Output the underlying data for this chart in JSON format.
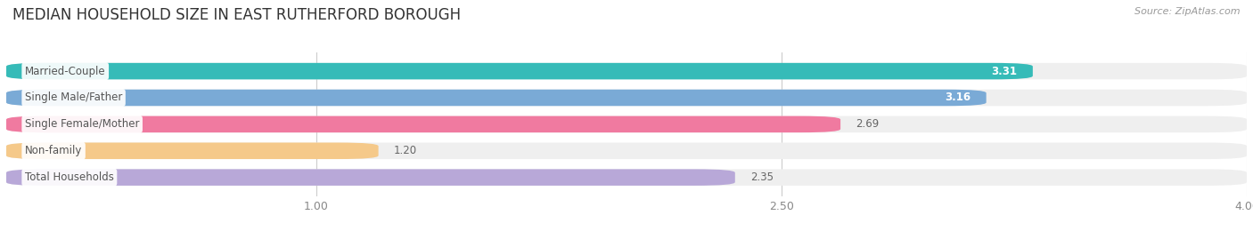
{
  "title": "MEDIAN HOUSEHOLD SIZE IN EAST RUTHERFORD BOROUGH",
  "source": "Source: ZipAtlas.com",
  "categories": [
    "Married-Couple",
    "Single Male/Father",
    "Single Female/Mother",
    "Non-family",
    "Total Households"
  ],
  "values": [
    3.31,
    3.16,
    2.69,
    1.2,
    2.35
  ],
  "bar_colors": [
    "#36bbb8",
    "#7aaad6",
    "#f07aA0",
    "#f5c98a",
    "#b8a8d8"
  ],
  "label_colors": [
    "#555555",
    "#555555",
    "#555555",
    "#555555",
    "#555555"
  ],
  "value_label_colors": [
    "white",
    "white",
    "#666666",
    "#666666",
    "#666666"
  ],
  "x_ticks": [
    1.0,
    2.5,
    4.0
  ],
  "x_min": 0.0,
  "x_max": 4.0,
  "title_fontsize": 12,
  "bar_height": 0.62,
  "background_color": "#ffffff",
  "bar_background_color": "#efefef",
  "grid_color": "#cccccc"
}
